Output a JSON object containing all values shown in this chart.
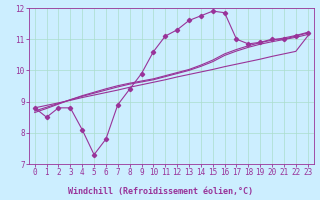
{
  "x": [
    0,
    1,
    2,
    3,
    4,
    5,
    6,
    7,
    8,
    9,
    10,
    11,
    12,
    13,
    14,
    15,
    16,
    17,
    18,
    19,
    20,
    21,
    22,
    23
  ],
  "main_y": [
    8.8,
    8.5,
    8.8,
    8.8,
    8.1,
    7.3,
    7.8,
    8.9,
    9.4,
    9.9,
    10.6,
    11.1,
    11.3,
    11.6,
    11.75,
    11.9,
    11.85,
    11.0,
    10.85,
    10.9,
    11.0,
    11.0,
    11.1,
    11.2
  ],
  "reg1_y": [
    8.8,
    8.88,
    8.96,
    9.04,
    9.13,
    9.21,
    9.29,
    9.37,
    9.46,
    9.54,
    9.62,
    9.7,
    9.79,
    9.87,
    9.95,
    10.03,
    10.12,
    10.2,
    10.28,
    10.36,
    10.45,
    10.53,
    10.61,
    11.1
  ],
  "reg2_y": [
    8.7,
    8.82,
    8.94,
    9.06,
    9.17,
    9.27,
    9.37,
    9.47,
    9.56,
    9.63,
    9.7,
    9.8,
    9.9,
    10.0,
    10.13,
    10.28,
    10.48,
    10.62,
    10.74,
    10.84,
    10.92,
    10.99,
    11.06,
    11.15
  ],
  "reg3_y": [
    8.65,
    8.78,
    8.92,
    9.06,
    9.19,
    9.3,
    9.41,
    9.51,
    9.59,
    9.66,
    9.73,
    9.83,
    9.93,
    10.03,
    10.17,
    10.33,
    10.53,
    10.67,
    10.79,
    10.89,
    10.97,
    11.04,
    11.12,
    11.22
  ],
  "color": "#993399",
  "bg_color": "#cceeff",
  "grid_color": "#aaddcc",
  "xlabel": "Windchill (Refroidissement éolien,°C)",
  "ylim": [
    7,
    12
  ],
  "xlim": [
    -0.5,
    23.5
  ],
  "yticks": [
    7,
    8,
    9,
    10,
    11,
    12
  ],
  "xticks": [
    0,
    1,
    2,
    3,
    4,
    5,
    6,
    7,
    8,
    9,
    10,
    11,
    12,
    13,
    14,
    15,
    16,
    17,
    18,
    19,
    20,
    21,
    22,
    23
  ],
  "tick_fontsize": 5.5,
  "xlabel_fontsize": 6.0,
  "linewidth": 0.8,
  "marker_size": 2.2
}
